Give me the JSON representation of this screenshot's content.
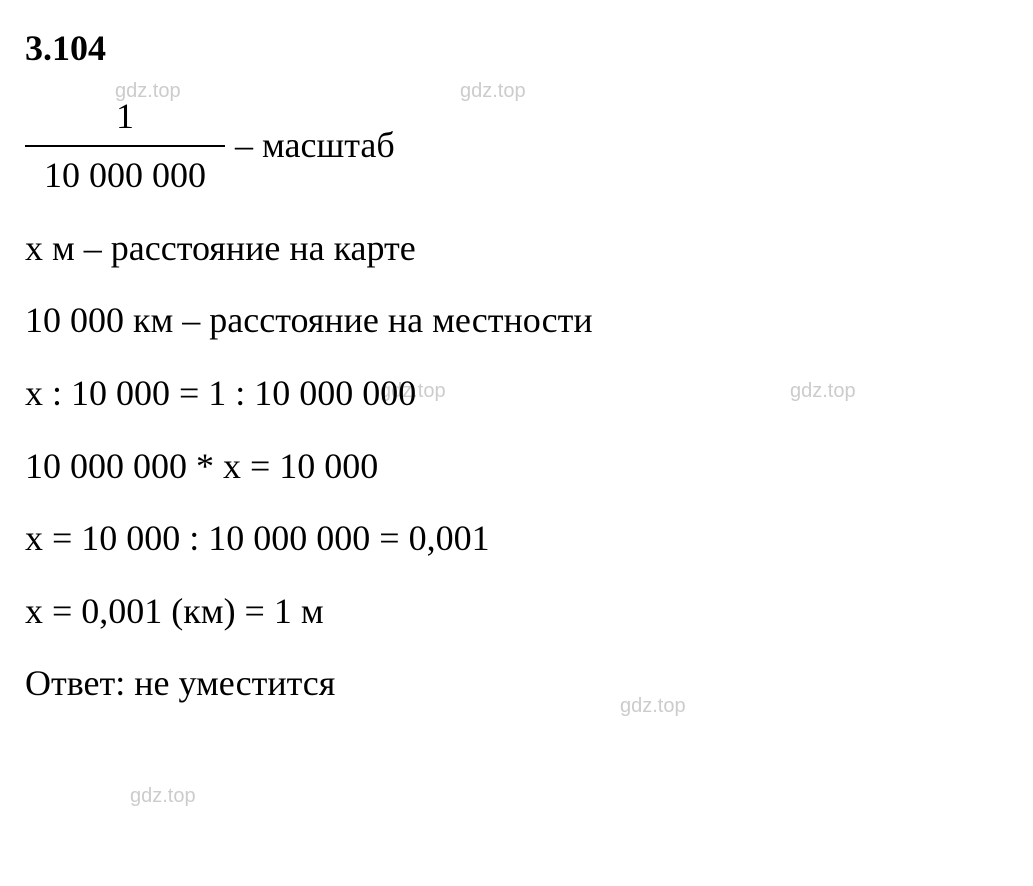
{
  "heading": "3.104",
  "fraction": {
    "numerator": "1",
    "denominator": "10 000 000"
  },
  "fraction_label": " – масштаб",
  "lines": {
    "line1": "x м – расстояние на карте",
    "line2": "10 000 км – расстояние на местности",
    "line3": "x : 10 000 = 1 : 10 000 000",
    "line4": "10 000 000 * x = 10 000",
    "line5": "x = 10 000 : 10 000 000 = 0,001",
    "line6": "x = 0,001 (км) = 1 м",
    "line7": "Ответ: не уместится"
  },
  "watermark_text": "gdz.top",
  "colors": {
    "text": "#000000",
    "background": "#ffffff",
    "watermark": "#cccccc"
  },
  "typography": {
    "font_family": "Times New Roman",
    "font_size_pt": 27,
    "heading_weight": "bold"
  }
}
